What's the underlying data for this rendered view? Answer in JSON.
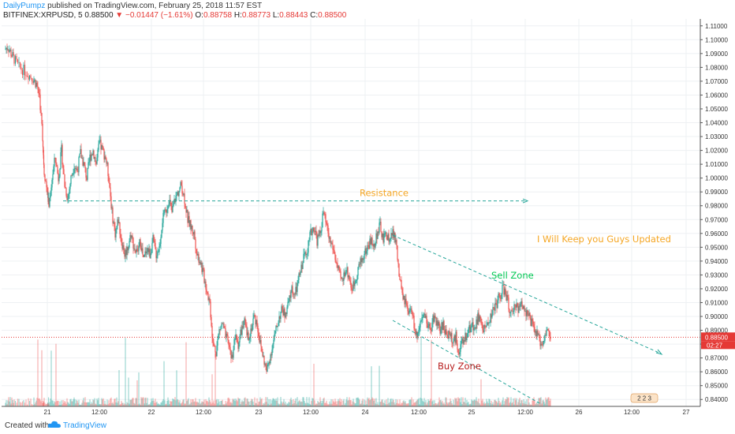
{
  "header": {
    "author": "DailyPumpz",
    "published": " published on TradingView.com, February 25, 2018 11:57 EST",
    "symbol": "BITFINEX:XRPUSD, 5",
    "last": "0.88500",
    "arrow": "▼",
    "change": "−0.01447 (−1.61%)",
    "open_label": "O:",
    "open": "0.88758",
    "high_label": "H:",
    "high": "0.88773",
    "low_label": "L:",
    "low": "0.88443",
    "close_label": "C:",
    "close": "0.88500"
  },
  "footer": {
    "created": "Created with",
    "brand": "TradingView"
  },
  "colors": {
    "up": "#26a69a",
    "down": "#ef5350",
    "grid": "#eef0f3",
    "price_line": "#e53935",
    "annotation_line": "#26a69a"
  },
  "chart_data": {
    "type": "candlestick",
    "symbol": "BITFINEX:XRPUSD",
    "interval": "5",
    "ylim": [
      0.835,
      1.115
    ],
    "y_ticks": [
      "1.11000",
      "1.10000",
      "1.09000",
      "1.08000",
      "1.07000",
      "1.06000",
      "1.05000",
      "1.04000",
      "1.03000",
      "1.02000",
      "1.01000",
      "1.00000",
      "0.99000",
      "0.98000",
      "0.97000",
      "0.96000",
      "0.95000",
      "0.94000",
      "0.93000",
      "0.92000",
      "0.91000",
      "0.90000",
      "0.89000",
      "0.88000",
      "0.87000",
      "0.86000",
      "0.85000",
      "0.84000"
    ],
    "x_ticks": [
      "21",
      "12:00",
      "22",
      "12:00",
      "23",
      "12:00",
      "24",
      "12:00",
      "25",
      "12:00",
      "26",
      "12:00",
      "27"
    ],
    "current_price": "0.88500",
    "countdown": "02:27",
    "close_path": [
      [
        0,
        1.093
      ],
      [
        4,
        1.095
      ],
      [
        8,
        1.09
      ],
      [
        12,
        1.086
      ],
      [
        18,
        1.08
      ],
      [
        24,
        1.078
      ],
      [
        30,
        1.075
      ],
      [
        36,
        1.072
      ],
      [
        40,
        1.068
      ],
      [
        44,
        1.06
      ],
      [
        48,
        1.03
      ],
      [
        50,
        1.005
      ],
      [
        54,
        0.99
      ],
      [
        56,
        0.98
      ],
      [
        60,
        1.0
      ],
      [
        64,
        1.015
      ],
      [
        68,
        1.0
      ],
      [
        72,
        1.02
      ],
      [
        76,
        0.995
      ],
      [
        80,
        0.985
      ],
      [
        84,
        1.0
      ],
      [
        88,
        1.01
      ],
      [
        92,
        1.005
      ],
      [
        96,
        1.018
      ],
      [
        100,
        1.01
      ],
      [
        104,
        1.0
      ],
      [
        108,
        1.015
      ],
      [
        112,
        1.02
      ],
      [
        116,
        1.01
      ],
      [
        120,
        1.025
      ],
      [
        124,
        1.02
      ],
      [
        128,
        1.015
      ],
      [
        132,
        1.0
      ],
      [
        136,
        0.975
      ],
      [
        140,
        0.96
      ],
      [
        144,
        0.97
      ],
      [
        148,
        0.955
      ],
      [
        152,
        0.945
      ],
      [
        156,
        0.95
      ],
      [
        160,
        0.96
      ],
      [
        164,
        0.95
      ],
      [
        168,
        0.945
      ],
      [
        172,
        0.955
      ],
      [
        176,
        0.94
      ],
      [
        180,
        0.95
      ],
      [
        184,
        0.945
      ],
      [
        188,
        0.955
      ],
      [
        192,
        0.945
      ],
      [
        196,
        0.95
      ],
      [
        200,
        0.97
      ],
      [
        204,
        0.975
      ],
      [
        208,
        0.985
      ],
      [
        212,
        0.975
      ],
      [
        216,
        0.985
      ],
      [
        220,
        0.99
      ],
      [
        224,
        0.995
      ],
      [
        228,
        0.985
      ],
      [
        232,
        0.97
      ],
      [
        236,
        0.965
      ],
      [
        240,
        0.96
      ],
      [
        244,
        0.945
      ],
      [
        248,
        0.94
      ],
      [
        252,
        0.93
      ],
      [
        256,
        0.92
      ],
      [
        260,
        0.91
      ],
      [
        264,
        0.88
      ],
      [
        268,
        0.875
      ],
      [
        272,
        0.89
      ],
      [
        276,
        0.895
      ],
      [
        280,
        0.885
      ],
      [
        284,
        0.88
      ],
      [
        288,
        0.87
      ],
      [
        292,
        0.885
      ],
      [
        296,
        0.88
      ],
      [
        300,
        0.89
      ],
      [
        304,
        0.895
      ],
      [
        308,
        0.885
      ],
      [
        312,
        0.89
      ],
      [
        316,
        0.9
      ],
      [
        320,
        0.895
      ],
      [
        324,
        0.88
      ],
      [
        328,
        0.87
      ],
      [
        332,
        0.86
      ],
      [
        336,
        0.87
      ],
      [
        340,
        0.88
      ],
      [
        344,
        0.89
      ],
      [
        348,
        0.9
      ],
      [
        352,
        0.905
      ],
      [
        356,
        0.9
      ],
      [
        360,
        0.91
      ],
      [
        364,
        0.92
      ],
      [
        368,
        0.915
      ],
      [
        372,
        0.925
      ],
      [
        376,
        0.935
      ],
      [
        380,
        0.945
      ],
      [
        384,
        0.95
      ],
      [
        388,
        0.96
      ],
      [
        392,
        0.965
      ],
      [
        396,
        0.955
      ],
      [
        400,
        0.96
      ],
      [
        404,
        0.975
      ],
      [
        408,
        0.965
      ],
      [
        412,
        0.955
      ],
      [
        416,
        0.95
      ],
      [
        420,
        0.94
      ],
      [
        424,
        0.93
      ],
      [
        428,
        0.925
      ],
      [
        432,
        0.935
      ],
      [
        436,
        0.93
      ],
      [
        440,
        0.92
      ],
      [
        444,
        0.925
      ],
      [
        448,
        0.935
      ],
      [
        452,
        0.94
      ],
      [
        456,
        0.945
      ],
      [
        460,
        0.95
      ],
      [
        464,
        0.955
      ],
      [
        468,
        0.95
      ],
      [
        472,
        0.96
      ],
      [
        476,
        0.965
      ],
      [
        480,
        0.955
      ],
      [
        484,
        0.96
      ],
      [
        488,
        0.955
      ],
      [
        492,
        0.96
      ],
      [
        496,
        0.955
      ],
      [
        500,
        0.93
      ],
      [
        504,
        0.915
      ],
      [
        508,
        0.91
      ],
      [
        512,
        0.9
      ],
      [
        516,
        0.905
      ],
      [
        520,
        0.89
      ],
      [
        524,
        0.885
      ],
      [
        528,
        0.895
      ],
      [
        532,
        0.9
      ],
      [
        536,
        0.895
      ],
      [
        540,
        0.89
      ],
      [
        544,
        0.9
      ],
      [
        548,
        0.895
      ],
      [
        552,
        0.89
      ],
      [
        556,
        0.895
      ],
      [
        560,
        0.885
      ],
      [
        564,
        0.89
      ],
      [
        568,
        0.88
      ],
      [
        572,
        0.885
      ],
      [
        576,
        0.875
      ],
      [
        580,
        0.88
      ],
      [
        584,
        0.885
      ],
      [
        588,
        0.89
      ],
      [
        592,
        0.895
      ],
      [
        596,
        0.89
      ],
      [
        600,
        0.9
      ],
      [
        604,
        0.895
      ],
      [
        608,
        0.89
      ],
      [
        612,
        0.895
      ],
      [
        616,
        0.9
      ],
      [
        620,
        0.905
      ],
      [
        624,
        0.91
      ],
      [
        628,
        0.915
      ],
      [
        632,
        0.92
      ],
      [
        636,
        0.915
      ],
      [
        640,
        0.905
      ],
      [
        644,
        0.9
      ],
      [
        648,
        0.91
      ],
      [
        652,
        0.905
      ],
      [
        656,
        0.91
      ],
      [
        660,
        0.905
      ],
      [
        664,
        0.9
      ],
      [
        668,
        0.895
      ],
      [
        672,
        0.89
      ],
      [
        676,
        0.885
      ],
      [
        680,
        0.88
      ],
      [
        684,
        0.885
      ],
      [
        688,
        0.89
      ],
      [
        692,
        0.885
      ]
    ],
    "annotations": {
      "resistance": {
        "label": "Resistance",
        "color": "#f5a623",
        "level": 0.9835
      },
      "sell_zone": {
        "label": "Sell Zone",
        "color": "#00c853"
      },
      "buy_zone": {
        "label": "Buy Zone",
        "color": "#b71c1c"
      },
      "note": {
        "label": "I Will Keep you Guys Updated",
        "color": "#f5a623"
      }
    }
  },
  "bottom_badge": "2 2 3"
}
